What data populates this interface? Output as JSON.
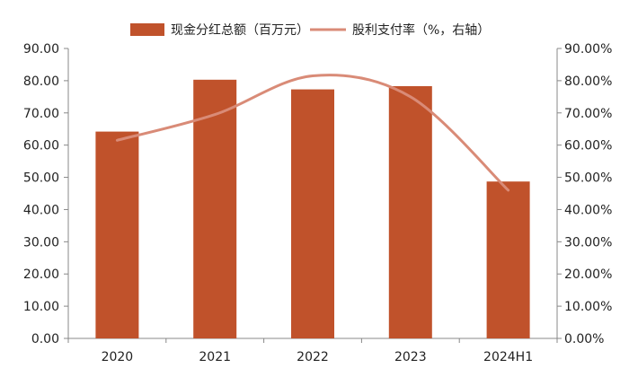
{
  "chart_data": {
    "type": "bar+line",
    "categories": [
      "2020",
      "2021",
      "2022",
      "2023",
      "2024H1"
    ],
    "series": [
      {
        "name": "现金分红总额（百万元）",
        "kind": "bar",
        "axis": "left",
        "color": "#C0522B",
        "values": [
          64.2,
          80.3,
          77.3,
          78.3,
          48.7
        ]
      },
      {
        "name": "股利支付率（%，右轴）",
        "kind": "line",
        "axis": "right",
        "color": "#D98B77",
        "values": [
          61.5,
          69.5,
          81.5,
          75.0,
          46.0
        ]
      }
    ],
    "y_left": {
      "range": [
        0,
        90
      ],
      "ticks": [
        "0.00",
        "10.00",
        "20.00",
        "30.00",
        "40.00",
        "50.00",
        "60.00",
        "70.00",
        "80.00",
        "90.00"
      ]
    },
    "y_right": {
      "range": [
        0,
        90
      ],
      "ticks": [
        "0.00%",
        "10.00%",
        "20.00%",
        "30.00%",
        "40.00%",
        "50.00%",
        "60.00%",
        "70.00%",
        "80.00%",
        "90.00%"
      ]
    },
    "legend_position": "top",
    "grid": false
  }
}
